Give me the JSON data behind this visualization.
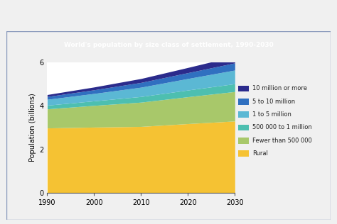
{
  "title": "World's population by size class of settlement, 1990-2030",
  "ylabel": "Population (billions)",
  "years": [
    1990,
    2000,
    2010,
    2020,
    2030
  ],
  "layers": {
    "Rural": [
      2.98,
      3.02,
      3.05,
      3.18,
      3.3
    ],
    "Fewer than 500 000": [
      0.88,
      1.0,
      1.12,
      1.24,
      1.36
    ],
    "500 000 to 1 million": [
      0.17,
      0.21,
      0.26,
      0.31,
      0.36
    ],
    "1 to 5 million": [
      0.27,
      0.34,
      0.43,
      0.53,
      0.63
    ],
    "5 to 10 million": [
      0.13,
      0.17,
      0.22,
      0.27,
      0.33
    ],
    "10 million or more": [
      0.09,
      0.13,
      0.18,
      0.24,
      0.31
    ]
  },
  "colors": {
    "Rural": "#F5C233",
    "Fewer than 500 000": "#A8C86A",
    "500 000 to 1 million": "#4DBFB0",
    "1 to 5 million": "#5BB8D4",
    "5 to 10 million": "#3070C0",
    "10 million or more": "#2B2B8C"
  },
  "legend_order": [
    "10 million or more",
    "5 to 10 million",
    "1 to 5 million",
    "500 000 to 1 million",
    "Fewer than 500 000",
    "Rural"
  ],
  "ylim": [
    0,
    6
  ],
  "yticks": [
    0,
    2,
    4,
    6
  ],
  "title_bg_color": "#1a2b6b",
  "title_text_color": "#ffffff",
  "plot_bg_color": "#ffffff",
  "outer_bg_color": "#dcdcdc",
  "box_bg_color": "#ffffff",
  "border_color": "#8899bb",
  "title_fontsize": 6.5,
  "axis_fontsize": 7,
  "legend_fontsize": 6.0
}
